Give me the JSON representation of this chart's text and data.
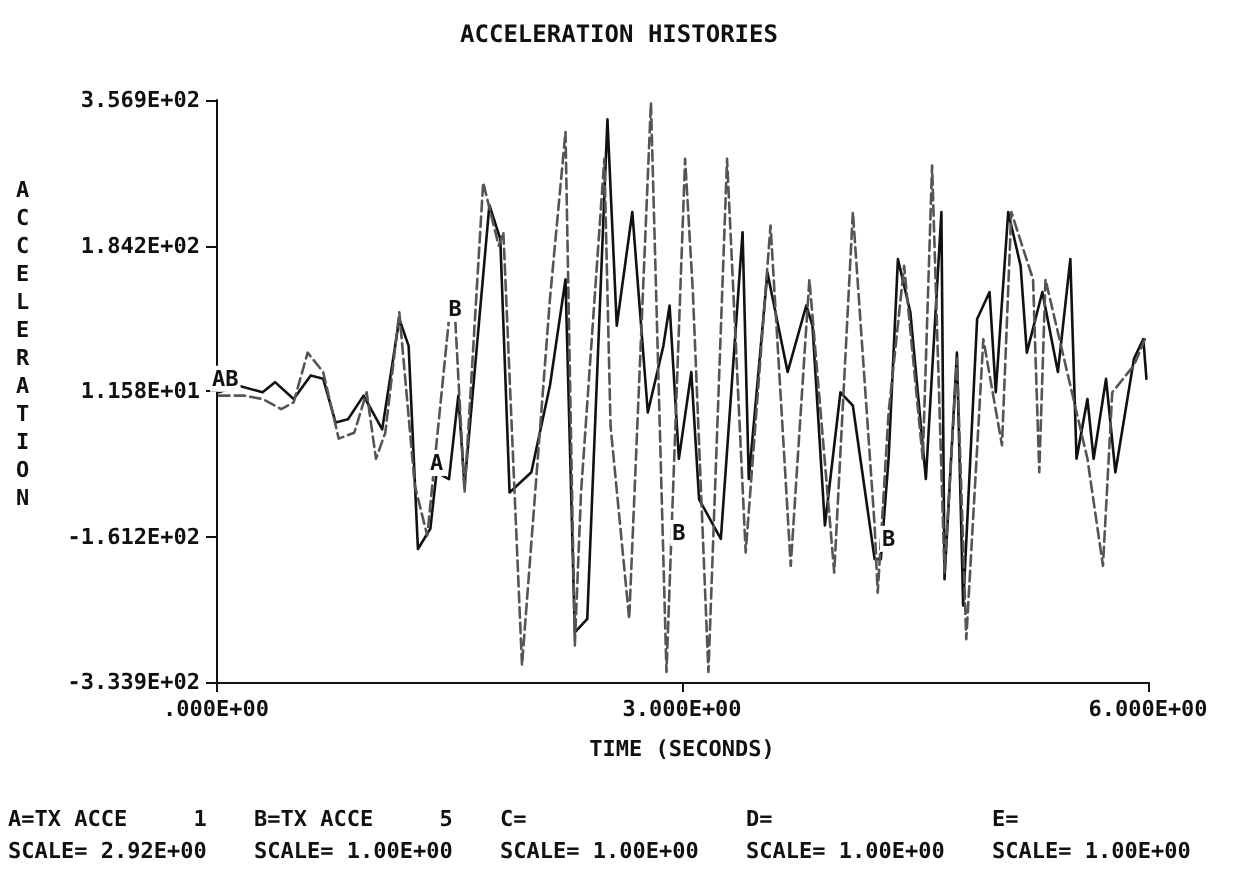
{
  "chart_data": {
    "type": "line",
    "title": "ACCELERATION HISTORIES",
    "xlabel": "TIME (SECONDS)",
    "ylabel": "ACCELERATION",
    "xlim": [
      0,
      6
    ],
    "xticks": [
      {
        "value": 0,
        "label": ".000E+00"
      },
      {
        "value": 3,
        "label": "3.000E+00"
      },
      {
        "value": 6,
        "label": "6.000E+00"
      }
    ],
    "ylim": [
      -333.9,
      356.9
    ],
    "yticks": [
      {
        "value": -333.9,
        "label": "-3.339E+02"
      },
      {
        "value": -161.2,
        "label": "-1.612E+02"
      },
      {
        "value": 11.58,
        "label": "1.158E+01"
      },
      {
        "value": 184.2,
        "label": "1.842E+02"
      },
      {
        "value": 356.9,
        "label": "3.569E+02"
      }
    ],
    "grid": false,
    "series": [
      {
        "color": "#111111",
        "line_style": "solid",
        "x": [
          0.02,
          0.14,
          0.3,
          0.38,
          0.5,
          0.61,
          0.69,
          0.77,
          0.85,
          0.95,
          1.07,
          1.18,
          1.24,
          1.3,
          1.38,
          1.42,
          1.5,
          1.56,
          1.6,
          1.76,
          1.83,
          1.89,
          2.03,
          2.15,
          2.25,
          2.31,
          2.39,
          2.52,
          2.58,
          2.68,
          2.78,
          2.88,
          2.92,
          2.98,
          3.06,
          3.11,
          3.25,
          3.39,
          3.43,
          3.55,
          3.68,
          3.8,
          3.84,
          3.92,
          4.02,
          4.1,
          4.24,
          4.28,
          4.33,
          4.39,
          4.47,
          4.57,
          4.67,
          4.69,
          4.77,
          4.81,
          4.9,
          4.98,
          5.02,
          5.1,
          5.18,
          5.22,
          5.32,
          5.42,
          5.5,
          5.54,
          5.61,
          5.65,
          5.73,
          5.79,
          5.91,
          5.97,
          5.99
        ],
        "values": [
          10,
          18,
          10,
          22,
          2,
          30,
          26,
          -26,
          -22,
          6,
          -34,
          97,
          65,
          -176,
          -152,
          -85,
          -93,
          6,
          -101,
          232,
          192,
          -109,
          -85,
          18,
          144,
          -275,
          -259,
          334,
          89,
          224,
          -14,
          65,
          113,
          -69,
          34,
          -117,
          -164,
          200,
          -93,
          152,
          34,
          113,
          89,
          -148,
          10,
          -6,
          -188,
          -188,
          -69,
          168,
          105,
          -93,
          224,
          -212,
          57,
          -243,
          97,
          129,
          10,
          224,
          160,
          57,
          129,
          34,
          168,
          -69,
          2,
          -69,
          26,
          -85,
          50,
          73,
          26
        ]
      },
      {
        "color": "#555555",
        "line_style": "dashed",
        "x": [
          0.02,
          0.18,
          0.3,
          0.42,
          0.5,
          0.59,
          0.69,
          0.79,
          0.89,
          0.97,
          1.03,
          1.09,
          1.18,
          1.28,
          1.36,
          1.5,
          1.54,
          1.6,
          1.72,
          1.82,
          1.85,
          1.97,
          2.15,
          2.25,
          2.31,
          2.35,
          2.5,
          2.54,
          2.66,
          2.8,
          2.9,
          3.02,
          3.07,
          3.17,
          3.29,
          3.41,
          3.57,
          3.7,
          3.82,
          3.98,
          4.1,
          4.24,
          4.26,
          4.33,
          4.43,
          4.55,
          4.61,
          4.69,
          4.77,
          4.83,
          4.94,
          5.06,
          5.12,
          5.26,
          5.3,
          5.34,
          5.5,
          5.61,
          5.71,
          5.77,
          5.91,
          5.98
        ],
        "values": [
          6,
          6,
          2,
          -10,
          -2,
          57,
          34,
          -45,
          -38,
          10,
          -69,
          -38,
          105,
          -101,
          -160,
          97,
          97,
          -109,
          259,
          184,
          200,
          -314,
          121,
          319,
          -291,
          -109,
          287,
          -30,
          -259,
          354,
          -322,
          287,
          129,
          -322,
          287,
          -180,
          208,
          -196,
          144,
          -204,
          224,
          -148,
          -228,
          -14,
          160,
          -69,
          279,
          -204,
          50,
          -283,
          73,
          -53,
          224,
          144,
          -85,
          144,
          18,
          -69,
          -196,
          10,
          42,
          73
        ]
      }
    ],
    "annotations": [
      {
        "text": "AB",
        "x": 0.06,
        "y": 26
      },
      {
        "text": "A",
        "x": 1.42,
        "y": -74
      },
      {
        "text": "B",
        "x": 1.54,
        "y": 109
      },
      {
        "text": "B",
        "x": 2.98,
        "y": -157
      },
      {
        "text": "B",
        "x": 4.33,
        "y": -164
      },
      "A=TX ACCE     1",
      "B=TX ACCE     5",
      "C=",
      "D=",
      "E=",
      "SCALE= 2.92E+00",
      "SCALE= 1.00E+00",
      "SCALE= 1.00E+00",
      "SCALE= 1.00E+00",
      "SCALE= 1.00E+00"
    ]
  }
}
